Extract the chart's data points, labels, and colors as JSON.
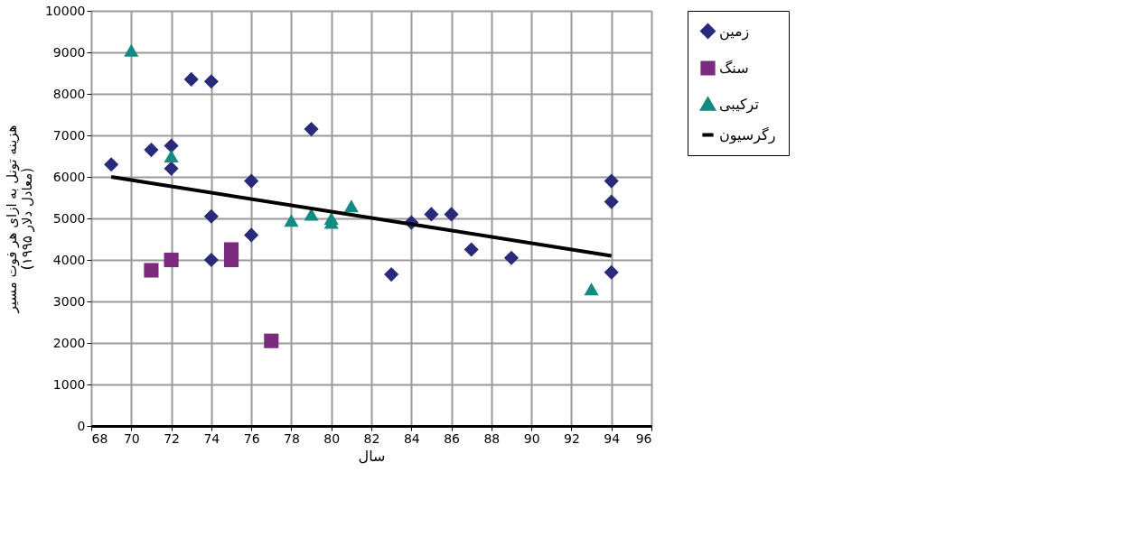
{
  "chart_data": {
    "type": "scatter",
    "xlabel": "سال",
    "ylabel": "هزینه تونل به ازای هر فوت مسیر\n(معادل دلار ۱۹۹۵)",
    "xlim": [
      68,
      96
    ],
    "xticks": [
      68,
      70,
      72,
      74,
      76,
      78,
      80,
      82,
      84,
      86,
      88,
      90,
      92,
      94,
      96
    ],
    "ylim": [
      0,
      10000
    ],
    "yticks": [
      0,
      1000,
      2000,
      3000,
      4000,
      5000,
      6000,
      7000,
      8000,
      9000,
      10000
    ],
    "grid": true,
    "legend": "right",
    "series": [
      {
        "name": "زمین",
        "color": "#2a2a7a",
        "marker": "diamond",
        "x": [
          69,
          71,
          72,
          72,
          73,
          74,
          74,
          74,
          76,
          76,
          79,
          83,
          84,
          85,
          86,
          87,
          89,
          94,
          94,
          94
        ],
        "values": [
          6300,
          6650,
          6750,
          6200,
          8350,
          8300,
          5050,
          4000,
          5900,
          4600,
          7150,
          3650,
          4900,
          5100,
          5100,
          4250,
          4050,
          5900,
          5400,
          3700
        ]
      },
      {
        "name": "سنگ",
        "color": "#7b2a7d",
        "marker": "square",
        "x": [
          71,
          72,
          75,
          75,
          77
        ],
        "values": [
          3750,
          4000,
          4250,
          4000,
          2050
        ]
      },
      {
        "name": "ترکیبی",
        "color": "#138a82",
        "marker": "triangle",
        "x": [
          70,
          72,
          78,
          79,
          80,
          80,
          81,
          93
        ],
        "values": [
          9050,
          6500,
          4950,
          5100,
          4900,
          5000,
          5300,
          3300
        ]
      },
      {
        "name": "رگرسیون",
        "color": "#000000",
        "type": "line",
        "marker": "none",
        "line_style": "solid",
        "x": [
          69,
          94
        ],
        "values": [
          6000,
          4100
        ]
      }
    ]
  }
}
